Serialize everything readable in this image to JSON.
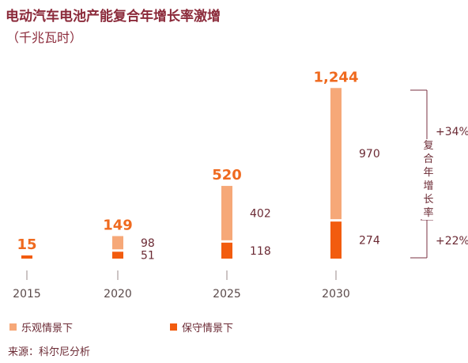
{
  "title": "电动汽车电池产能复合年增长率激增",
  "subtitle": "（千兆瓦时）",
  "legend": {
    "optimistic": "乐观情景下",
    "conservative": "保守情景下"
  },
  "source": "来源：科尔尼分析",
  "cagr": {
    "label": "复合年增长率",
    "upper": "+34%",
    "lower": "+22%"
  },
  "colors": {
    "optimistic": "#f6a878",
    "conservative": "#f25c0f",
    "total": "#ef6a1f",
    "text": "#6b2a34",
    "title": "#8b2a3a"
  },
  "chart_data": {
    "type": "bar",
    "stacked": true,
    "categories": [
      "2015",
      "2020",
      "2025",
      "2030"
    ],
    "totals": [
      "15",
      "149",
      "520",
      "1,244"
    ],
    "series": [
      {
        "name": "保守情景下",
        "values": [
          15,
          51,
          118,
          274
        ],
        "labels": [
          "",
          "51",
          "118",
          "274"
        ]
      },
      {
        "name": "乐观情景下",
        "values": [
          0,
          98,
          402,
          970
        ],
        "labels": [
          "",
          "98",
          "402",
          "970"
        ]
      }
    ],
    "title": "电动汽车电池产能复合年增长率激增",
    "ylabel": "（千兆瓦时）",
    "grid": false,
    "legend_position": "bottom-left"
  }
}
